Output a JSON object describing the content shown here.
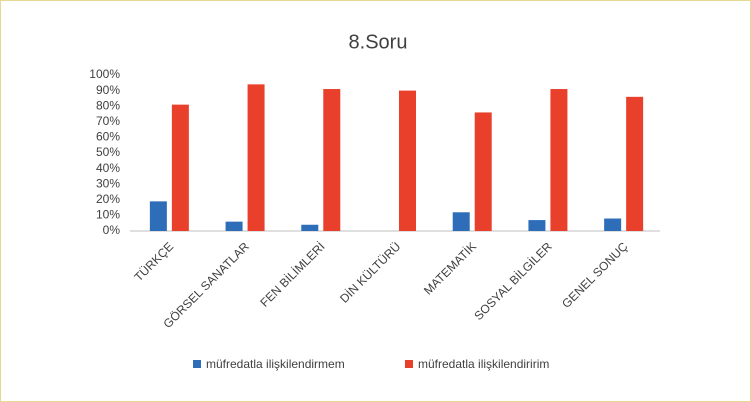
{
  "chart_data": {
    "type": "bar",
    "title": "8.Soru",
    "categories": [
      "TÜRKÇE",
      "GÖRSEL SANATLAR",
      "FEN BİLİMLERİ",
      "DİN KÜLTÜRÜ",
      "MATEMATİK",
      "SOSYAL BİLGİLER",
      "GENEL SONUÇ"
    ],
    "series": [
      {
        "name": "müfredatla ilişkilendirmem",
        "color": "#2e6db8",
        "values": [
          19,
          6,
          4,
          0,
          12,
          7,
          8
        ]
      },
      {
        "name": "müfredatla ilişkilendiririm",
        "color": "#e8402b",
        "values": [
          81,
          94,
          91,
          90,
          76,
          91,
          86
        ]
      }
    ],
    "ylim": [
      0,
      100
    ],
    "yticks": [
      {
        "value": 0,
        "label": "0%"
      },
      {
        "value": 10,
        "label": "10%"
      },
      {
        "value": 20,
        "label": "20%"
      },
      {
        "value": 30,
        "label": "30%"
      },
      {
        "value": 40,
        "label": "40%"
      },
      {
        "value": 50,
        "label": "50%"
      },
      {
        "value": 60,
        "label": "60%"
      },
      {
        "value": 70,
        "label": "70%"
      },
      {
        "value": 80,
        "label": "80%"
      },
      {
        "value": 90,
        "label": "90%"
      },
      {
        "value": 100,
        "label": "100%"
      }
    ],
    "legend": "bottom"
  }
}
